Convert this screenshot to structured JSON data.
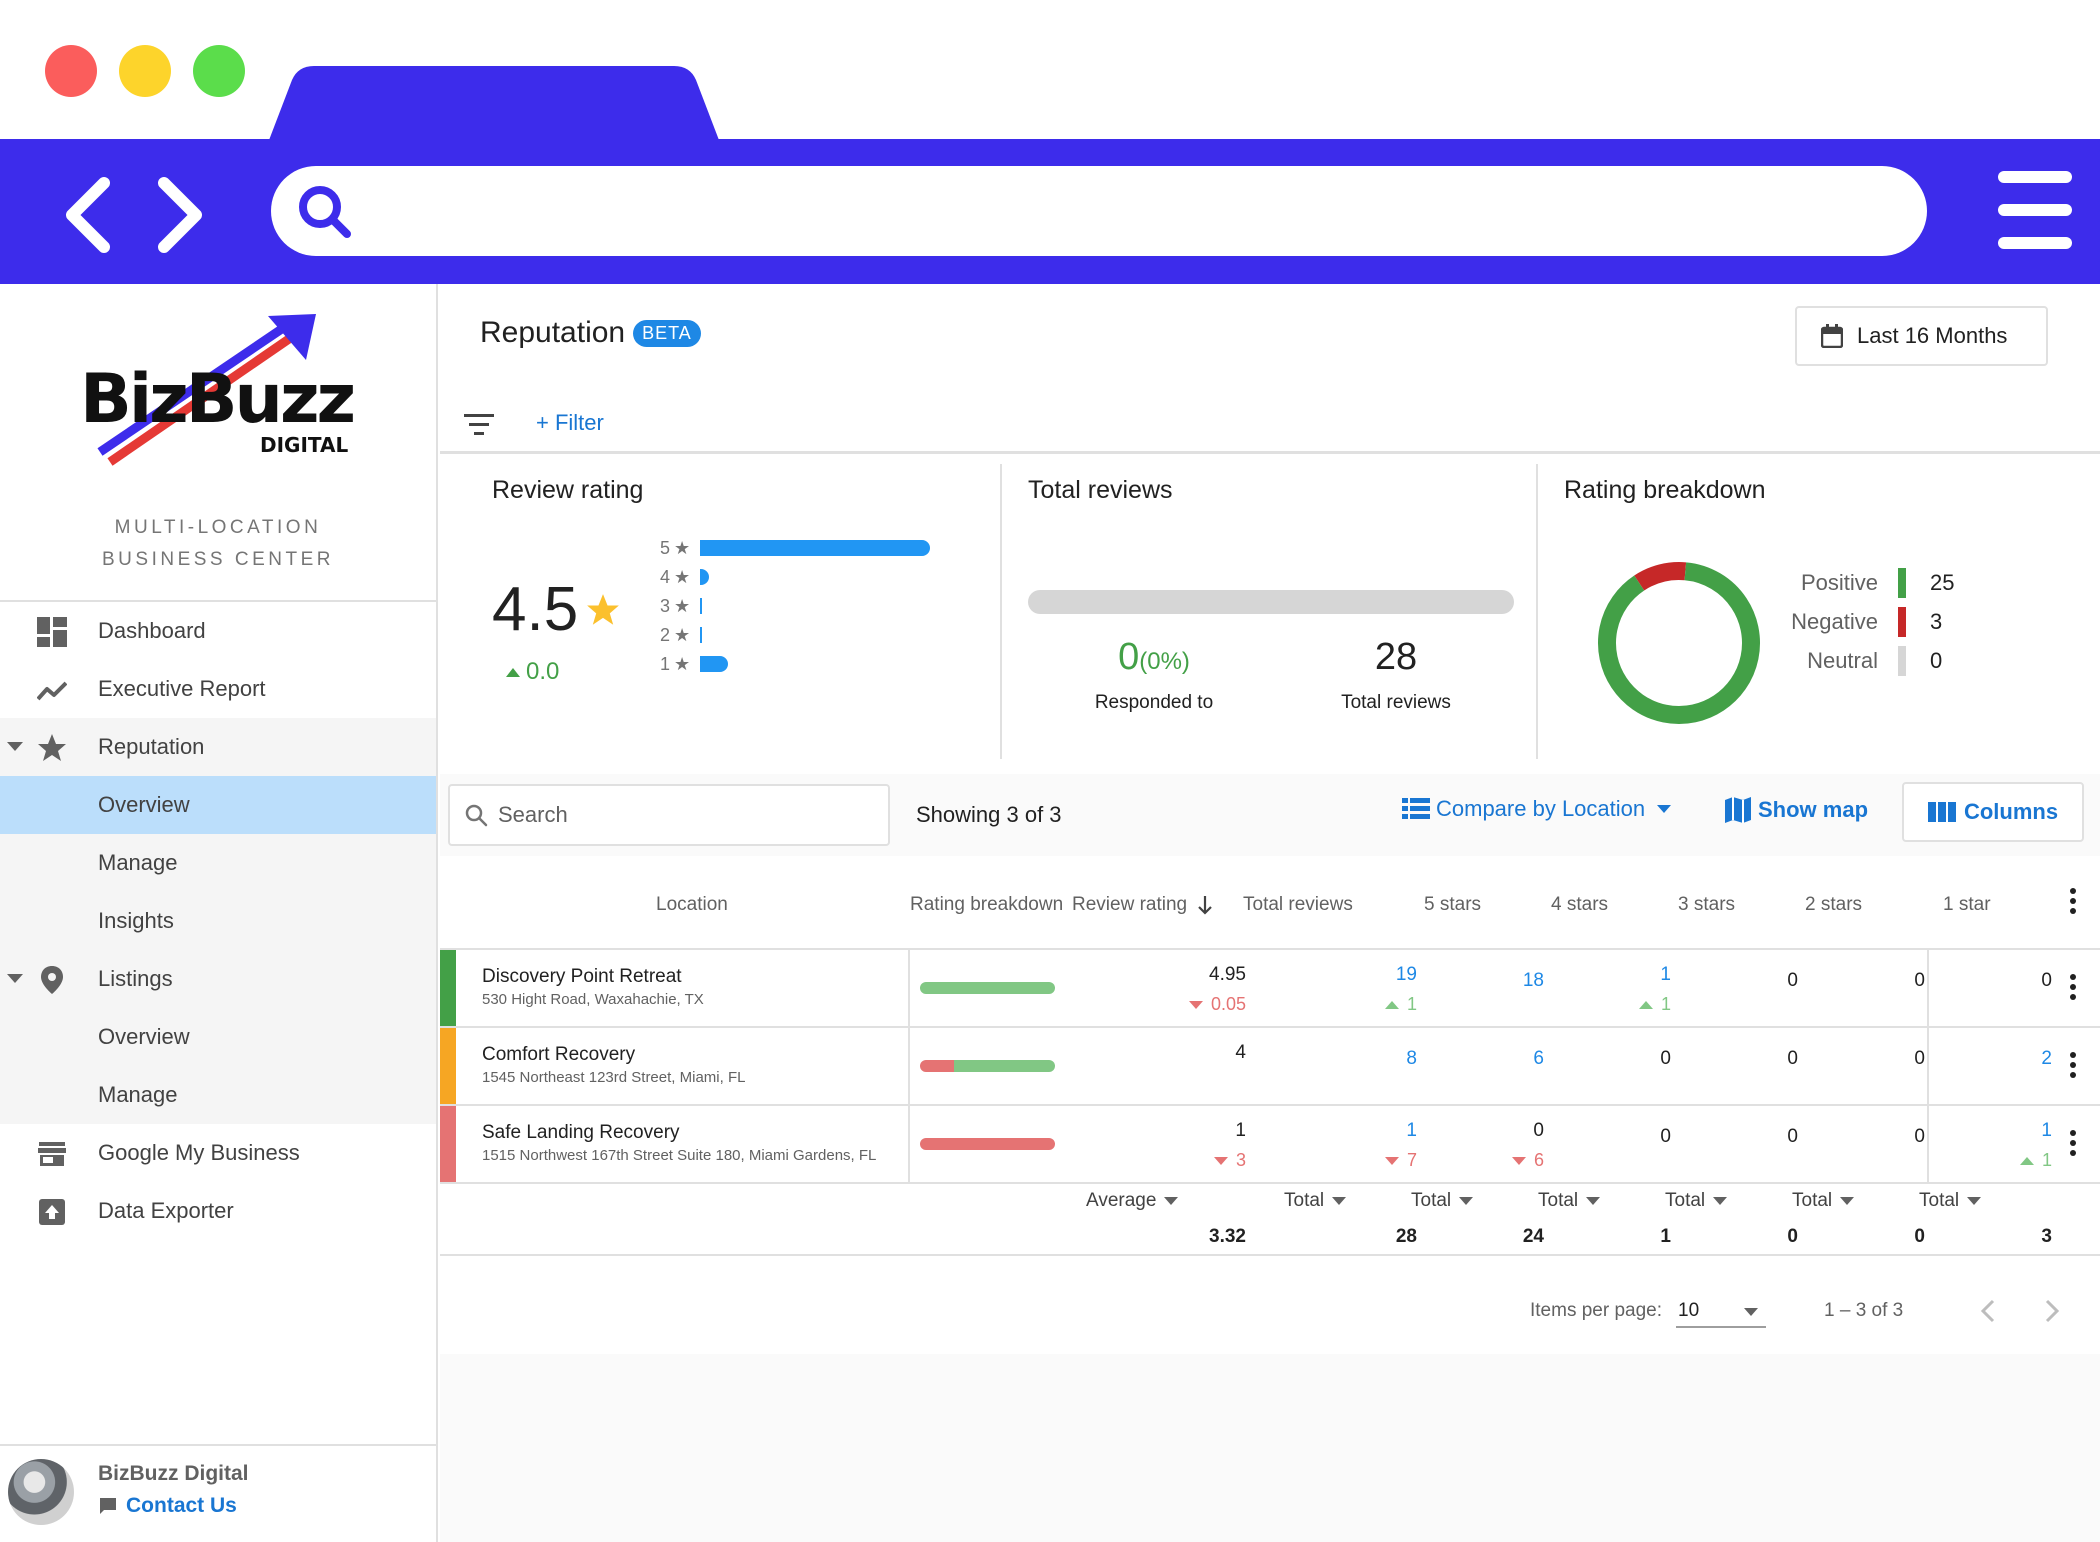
{
  "sidebar": {
    "logo_text": "BizBuzz",
    "logo_sub": "DIGITAL",
    "tagline_line1": "MULTI-LOCATION",
    "tagline_line2": "BUSINESS CENTER",
    "items": [
      {
        "label": "Dashboard",
        "icon": "dashboard-icon"
      },
      {
        "label": "Executive Report",
        "icon": "trending-icon"
      },
      {
        "label": "Reputation",
        "icon": "star-icon"
      },
      {
        "label": "Overview"
      },
      {
        "label": "Manage"
      },
      {
        "label": "Insights"
      },
      {
        "label": "Listings",
        "icon": "location-pin-icon"
      },
      {
        "label": "Overview"
      },
      {
        "label": "Manage"
      },
      {
        "label": "Google My Business",
        "icon": "store-icon"
      },
      {
        "label": "Data Exporter",
        "icon": "upload-box-icon"
      }
    ],
    "footer": {
      "org_name": "BizBuzz Digital",
      "contact": "Contact Us"
    }
  },
  "header": {
    "title": "Reputation",
    "badge": "BETA",
    "date_range": "Last 16 Months",
    "filter_link": "+ Filter"
  },
  "cards": {
    "review_rating": {
      "title": "Review rating",
      "value": "4.5",
      "delta": "0.0",
      "distribution": [
        {
          "label": "5",
          "fraction": 1.0
        },
        {
          "label": "4",
          "fraction": 0.04
        },
        {
          "label": "3",
          "fraction": 0.0
        },
        {
          "label": "2",
          "fraction": 0.0
        },
        {
          "label": "1",
          "fraction": 0.12
        }
      ]
    },
    "total_reviews": {
      "title": "Total reviews",
      "responded_value": "0",
      "responded_pct": "(0%)",
      "responded_label": "Responded to",
      "total_value": "28",
      "total_label": "Total reviews"
    },
    "rating_breakdown": {
      "title": "Rating breakdown",
      "legend": [
        {
          "name": "Positive",
          "value": "25",
          "color": "#43a047"
        },
        {
          "name": "Negative",
          "value": "3",
          "color": "#c62828"
        },
        {
          "name": "Neutral",
          "value": "0",
          "color": "#d6d6d6"
        }
      ]
    }
  },
  "toolbar": {
    "search_placeholder": "Search",
    "showing": "Showing 3 of 3",
    "compare": "Compare by Location",
    "show_map": "Show map",
    "columns": "Columns"
  },
  "table": {
    "headers": {
      "location": "Location",
      "rating_breakdown": "Rating breakdown",
      "review_rating": "Review rating",
      "total_reviews": "Total reviews",
      "five": "5 stars",
      "four": "4 stars",
      "three": "3 stars",
      "two": "2 stars",
      "one": "1 star"
    },
    "rows": [
      {
        "name": "Discovery Point Retreat",
        "address": "530 Hight Road, Waxahachie, TX",
        "color": "#43a047",
        "positive_fraction": 1.0,
        "rating": "4.95",
        "rating_delta": "0.05",
        "total": "19",
        "total_delta": "1",
        "five": "18",
        "four": "1",
        "four_delta": "1",
        "three": "0",
        "two": "0",
        "one": "0"
      },
      {
        "name": "Comfort Recovery",
        "address": "1545 Northeast 123rd Street, Miami, FL",
        "color": "#f6a623",
        "positive_fraction": 0.75,
        "rating": "4",
        "total": "8",
        "five": "6",
        "four": "0",
        "three": "0",
        "two": "0",
        "one": "2"
      },
      {
        "name": "Safe Landing Recovery",
        "address": "1515 Northwest 167th Street Suite 180, Miami Gardens, FL",
        "color": "#e57373",
        "positive_fraction": 0.0,
        "rating": "1",
        "rating_delta": "3",
        "total": "1",
        "total_delta": "7",
        "five": "0",
        "five_delta": "6",
        "four": "0",
        "three": "0",
        "two": "0",
        "one": "1",
        "one_delta": "1"
      }
    ],
    "footer": {
      "average_label": "Average",
      "average": "3.32",
      "total_label": "Total",
      "total": "28",
      "five": "24",
      "four": "1",
      "three": "0",
      "two": "0",
      "one": "3"
    }
  },
  "pager": {
    "items_per_page_label": "Items per page:",
    "items_per_page": "10",
    "range": "1 – 3 of 3"
  }
}
